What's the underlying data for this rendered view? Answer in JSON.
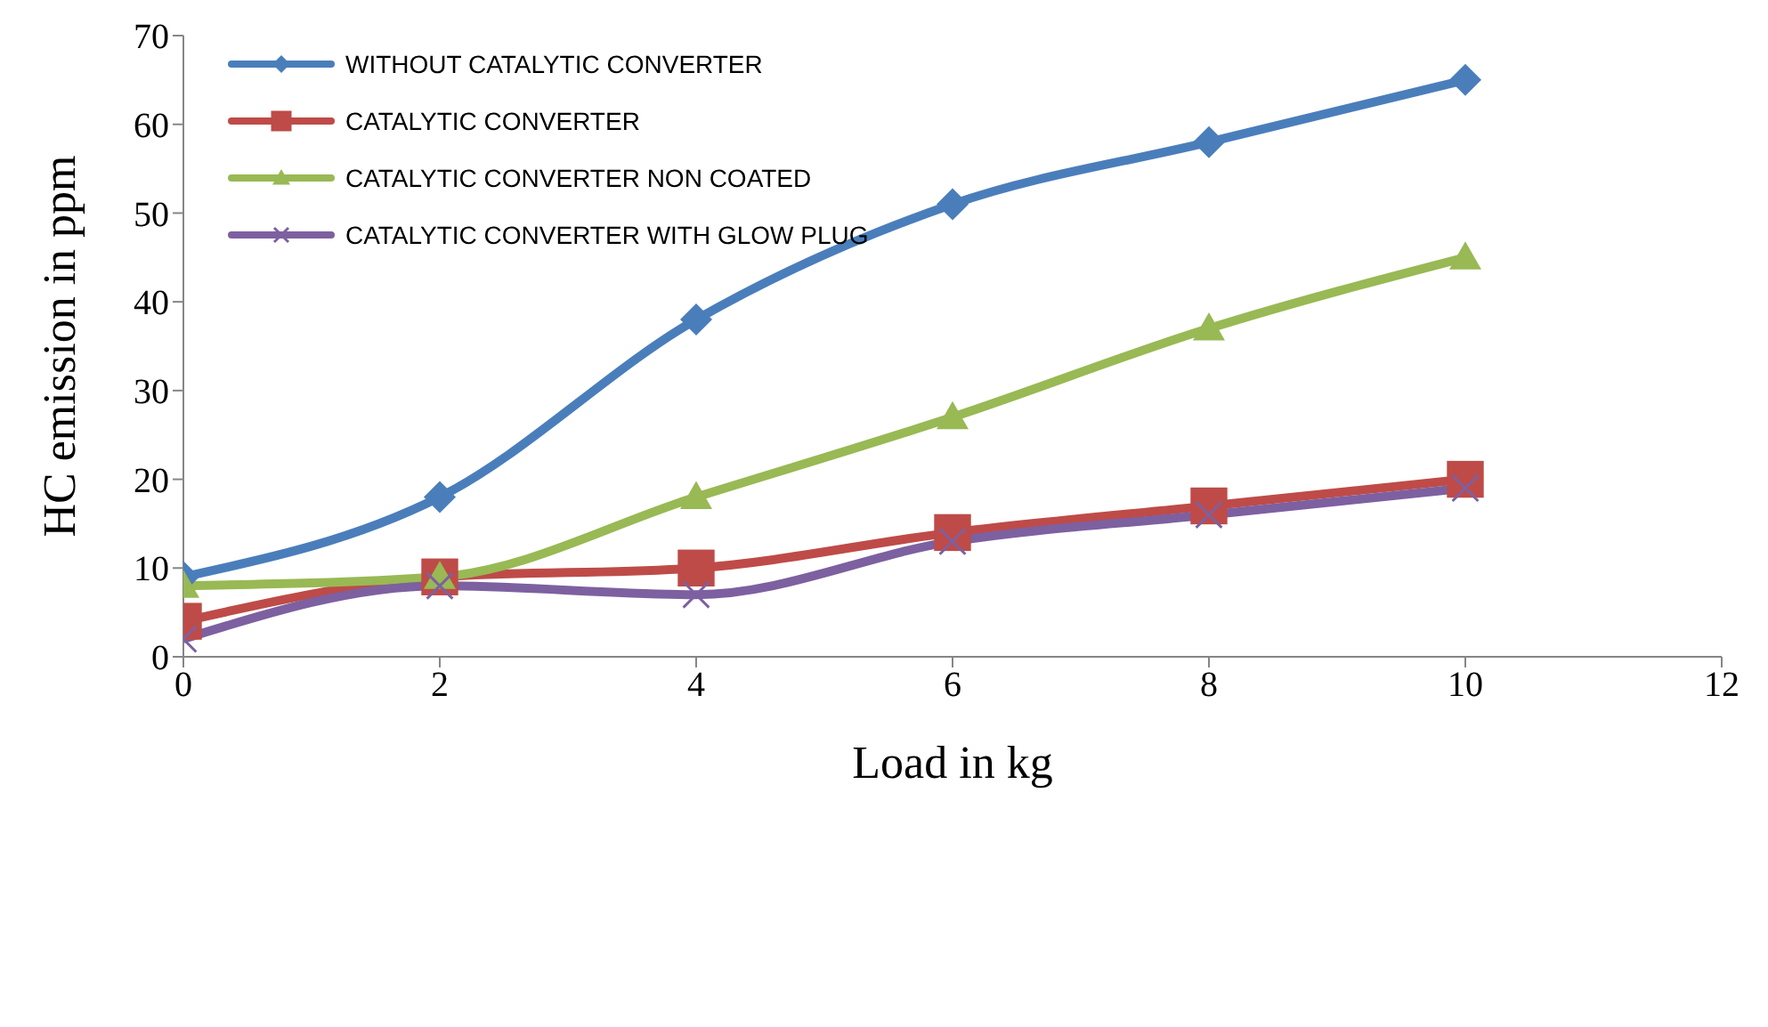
{
  "chart_data": {
    "type": "line",
    "xlabel": "Load in kg",
    "ylabel": "HC emission in ppm",
    "x": [
      0,
      2,
      4,
      6,
      8,
      10
    ],
    "series": [
      {
        "name": "WITHOUT CATALYTIC CONVERTER",
        "color": "#4a7ebb",
        "marker": "diamond",
        "values": [
          9,
          18,
          38,
          51,
          58,
          65
        ]
      },
      {
        "name": "CATALYTIC CONVERTER",
        "color": "#be4b48",
        "marker": "square",
        "values": [
          4,
          9,
          10,
          14,
          17,
          20
        ]
      },
      {
        "name": "CATALYTIC CONVERTER NON COATED",
        "color": "#98b954",
        "marker": "triangle",
        "values": [
          8,
          9,
          18,
          27,
          37,
          45
        ]
      },
      {
        "name": "CATALYTIC CONVERTER WITH GLOW PLUG",
        "color": "#7d60a0",
        "marker": "cross",
        "values": [
          2,
          8,
          7,
          13,
          16,
          19
        ]
      }
    ],
    "xlim": [
      0,
      12
    ],
    "xticks": [
      0,
      2,
      4,
      6,
      8,
      10,
      12
    ],
    "ylim": [
      0,
      70
    ],
    "yticks": [
      0,
      10,
      20,
      30,
      40,
      50,
      60,
      70
    ],
    "grid": false,
    "legend": "top left",
    "line_style": "solid"
  }
}
